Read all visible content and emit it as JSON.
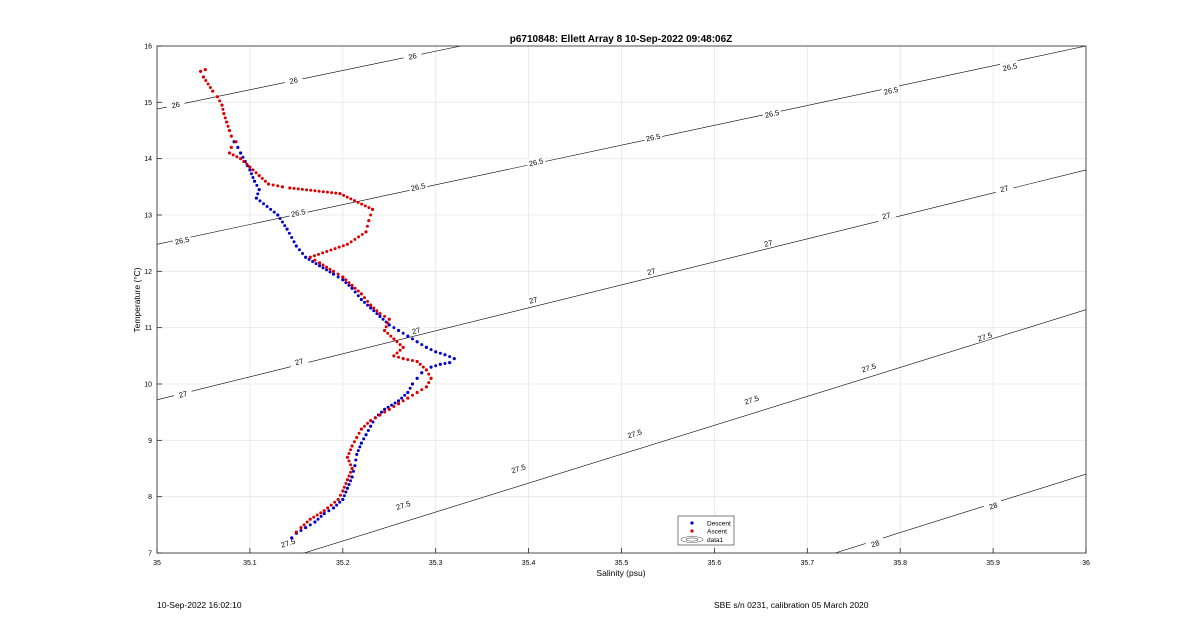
{
  "footer": {
    "left": "10-Sep-2022 16:02:10",
    "right": "SBE s/n 0231, calibration 05 March 2020"
  },
  "chart_data": {
    "type": "scatter",
    "title": "p6710848: Ellett Array 8 10-Sep-2022 09:48:06Z",
    "xlabel": "Salinity (psu)",
    "ylabel": "Temperature (°C)",
    "xlim": [
      35,
      36
    ],
    "ylim": [
      7,
      16
    ],
    "xticks": [
      35,
      35.1,
      35.2,
      35.3,
      35.4,
      35.5,
      35.6,
      35.7,
      35.8,
      35.9,
      36
    ],
    "xtick_labels": [
      "35",
      "35.1",
      "35.2",
      "35.3",
      "35.4",
      "35.5",
      "35.6",
      "35.7",
      "35.8",
      "35.9",
      "36"
    ],
    "yticks": [
      7,
      8,
      9,
      10,
      11,
      12,
      13,
      14,
      15,
      16
    ],
    "ytick_labels": [
      "7",
      "8",
      "9",
      "10",
      "11",
      "12",
      "13",
      "14",
      "15",
      "16"
    ],
    "grid": true,
    "legend": {
      "placement": "bottom-center",
      "entries": [
        "Descent",
        "Ascent",
        "data1"
      ]
    },
    "colors": {
      "descent": "#0000cc",
      "ascent": "#dd0000",
      "contour": "#000000",
      "grid": "#e6e6e6"
    },
    "contours": [
      {
        "level": "26",
        "x": [
          35,
          35.327
        ],
        "y": [
          14.88,
          16
        ],
        "labels": [
          [
            35.02,
            14.96
          ],
          [
            35.147,
            15.39
          ],
          [
            35.275,
            15.82
          ]
        ]
      },
      {
        "level": "26.5",
        "x": [
          35,
          36
        ],
        "y": [
          12.48,
          16
        ],
        "labels": [
          [
            35.027,
            12.55
          ],
          [
            35.152,
            13.04
          ],
          [
            35.281,
            13.5
          ],
          [
            35.408,
            13.94
          ],
          [
            35.534,
            14.38
          ],
          [
            35.662,
            14.8
          ],
          [
            35.79,
            15.21
          ],
          [
            35.918,
            15.63
          ]
        ]
      },
      {
        "level": "27",
        "x": [
          35,
          36
        ],
        "y": [
          9.72,
          13.8
        ],
        "labels": [
          [
            35.028,
            9.82
          ],
          [
            35.153,
            10.4
          ],
          [
            35.279,
            10.95
          ],
          [
            35.405,
            11.49
          ],
          [
            35.532,
            12.0
          ],
          [
            35.658,
            12.5
          ],
          [
            35.785,
            12.99
          ],
          [
            35.912,
            13.47
          ]
        ]
      },
      {
        "level": "27.5",
        "x": [
          35.1,
          36
        ],
        "y": [
          6.7,
          11.32
        ],
        "labels": [
          [
            35.141,
            7.18
          ],
          [
            35.265,
            7.85
          ],
          [
            35.389,
            8.5
          ],
          [
            35.514,
            9.12
          ],
          [
            35.64,
            9.72
          ],
          [
            35.766,
            10.29
          ],
          [
            35.891,
            10.84
          ]
        ]
      },
      {
        "level": "28",
        "x": [
          35.73,
          36
        ],
        "y": [
          7,
          8.4
        ],
        "labels": [
          [
            35.773,
            7.17
          ],
          [
            35.9,
            7.84
          ]
        ]
      }
    ],
    "series": [
      {
        "name": "Descent",
        "points": [
          [
            35.083,
            14.3
          ],
          [
            35.087,
            14.2
          ],
          [
            35.09,
            14.1
          ],
          [
            35.095,
            13.95
          ],
          [
            35.1,
            13.8
          ],
          [
            35.105,
            13.6
          ],
          [
            35.11,
            13.45
          ],
          [
            35.107,
            13.3
          ],
          [
            35.13,
            13.0
          ],
          [
            35.14,
            12.75
          ],
          [
            35.15,
            12.45
          ],
          [
            35.16,
            12.25
          ],
          [
            35.175,
            12.1
          ],
          [
            35.19,
            11.95
          ],
          [
            35.2,
            11.85
          ],
          [
            35.21,
            11.7
          ],
          [
            35.22,
            11.5
          ],
          [
            35.23,
            11.35
          ],
          [
            35.24,
            11.2
          ],
          [
            35.25,
            11.05
          ],
          [
            35.26,
            10.95
          ],
          [
            35.27,
            10.85
          ],
          [
            35.28,
            10.75
          ],
          [
            35.29,
            10.65
          ],
          [
            35.3,
            10.57
          ],
          [
            35.31,
            10.52
          ],
          [
            35.32,
            10.45
          ],
          [
            35.315,
            10.38
          ],
          [
            35.305,
            10.35
          ],
          [
            35.295,
            10.3
          ],
          [
            35.285,
            10.2
          ],
          [
            35.28,
            10.1
          ],
          [
            35.275,
            10.0
          ],
          [
            35.27,
            9.85
          ],
          [
            35.26,
            9.7
          ],
          [
            35.245,
            9.55
          ],
          [
            35.235,
            9.4
          ],
          [
            35.23,
            9.25
          ],
          [
            35.225,
            9.1
          ],
          [
            35.22,
            8.95
          ],
          [
            35.215,
            8.75
          ],
          [
            35.213,
            8.55
          ],
          [
            35.21,
            8.35
          ],
          [
            35.205,
            8.15
          ],
          [
            35.2,
            7.95
          ],
          [
            35.19,
            7.8
          ],
          [
            35.18,
            7.7
          ],
          [
            35.17,
            7.55
          ],
          [
            35.16,
            7.45
          ],
          [
            35.15,
            7.35
          ],
          [
            35.145,
            7.27
          ]
        ]
      },
      {
        "name": "Ascent",
        "points": [
          [
            35.047,
            15.55
          ],
          [
            35.052,
            15.58
          ],
          [
            35.05,
            15.45
          ],
          [
            35.06,
            15.2
          ],
          [
            35.065,
            15.1
          ],
          [
            35.07,
            14.95
          ],
          [
            35.072,
            14.8
          ],
          [
            35.075,
            14.65
          ],
          [
            35.078,
            14.5
          ],
          [
            35.08,
            14.4
          ],
          [
            35.085,
            14.3
          ],
          [
            35.08,
            14.2
          ],
          [
            35.078,
            14.1
          ],
          [
            35.09,
            14.0
          ],
          [
            35.1,
            13.85
          ],
          [
            35.11,
            13.7
          ],
          [
            35.12,
            13.55
          ],
          [
            35.135,
            13.5
          ],
          [
            35.143,
            13.48
          ],
          [
            35.197,
            13.38
          ],
          [
            35.232,
            13.1
          ],
          [
            35.228,
            12.9
          ],
          [
            35.225,
            12.7
          ],
          [
            35.205,
            12.48
          ],
          [
            35.165,
            12.25
          ],
          [
            35.175,
            12.15
          ],
          [
            35.19,
            12.0
          ],
          [
            35.2,
            11.9
          ],
          [
            35.21,
            11.75
          ],
          [
            35.22,
            11.6
          ],
          [
            35.23,
            11.4
          ],
          [
            35.24,
            11.25
          ],
          [
            35.25,
            11.15
          ],
          [
            35.245,
            10.95
          ],
          [
            35.255,
            10.8
          ],
          [
            35.265,
            10.65
          ],
          [
            35.255,
            10.5
          ],
          [
            35.265,
            10.45
          ],
          [
            35.28,
            10.4
          ],
          [
            35.29,
            10.25
          ],
          [
            35.295,
            10.1
          ],
          [
            35.29,
            9.95
          ],
          [
            35.28,
            9.85
          ],
          [
            35.27,
            9.75
          ],
          [
            35.26,
            9.65
          ],
          [
            35.25,
            9.55
          ],
          [
            35.24,
            9.45
          ],
          [
            35.23,
            9.35
          ],
          [
            35.22,
            9.2
          ],
          [
            35.215,
            9.05
          ],
          [
            35.21,
            8.9
          ],
          [
            35.205,
            8.7
          ],
          [
            35.21,
            8.5
          ],
          [
            35.205,
            8.3
          ],
          [
            35.2,
            8.1
          ],
          [
            35.195,
            7.95
          ],
          [
            35.18,
            7.75
          ],
          [
            35.165,
            7.6
          ],
          [
            35.155,
            7.45
          ],
          [
            35.15,
            7.37
          ]
        ]
      }
    ]
  }
}
